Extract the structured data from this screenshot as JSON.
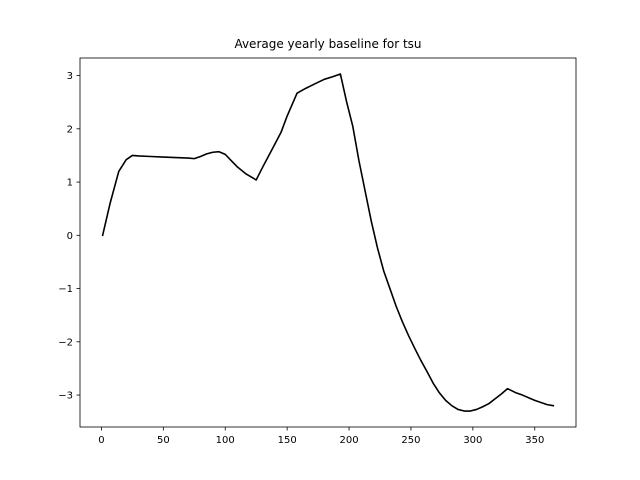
{
  "chart_data": {
    "type": "line",
    "title": "Average yearly baseline for tsu",
    "xlabel": "",
    "ylabel": "",
    "xlim": [
      -17.3,
      383.3
    ],
    "ylim": [
      -3.6,
      3.33
    ],
    "x_ticks": [
      0,
      50,
      100,
      150,
      200,
      250,
      300,
      350
    ],
    "x_tick_labels": [
      "0",
      "50",
      "100",
      "150",
      "200",
      "250",
      "300",
      "350"
    ],
    "y_ticks": [
      3,
      2,
      1,
      0,
      -1,
      -2,
      -3
    ],
    "y_tick_labels": [
      "3",
      "2",
      "1",
      "0",
      "−1",
      "−2",
      "−3"
    ],
    "grid": false,
    "line_color": "#000000",
    "series": [
      {
        "x": [
          1,
          7,
          14,
          20,
          25,
          30,
          40,
          50,
          60,
          70,
          75,
          80,
          85,
          90,
          95,
          100,
          105,
          110,
          117,
          125,
          130,
          138,
          145,
          150,
          158,
          165,
          172,
          180,
          187,
          193,
          198,
          203,
          208,
          213,
          218,
          223,
          228,
          233,
          238,
          243,
          248,
          253,
          258,
          263,
          268,
          273,
          278,
          283,
          288,
          293,
          298,
          303,
          308,
          313,
          318,
          323,
          328,
          335,
          340,
          345,
          350,
          355,
          360,
          365
        ],
        "y": [
          0.0,
          0.6,
          1.2,
          1.42,
          1.5,
          1.49,
          1.48,
          1.47,
          1.46,
          1.45,
          1.44,
          1.48,
          1.53,
          1.56,
          1.57,
          1.52,
          1.4,
          1.28,
          1.15,
          1.04,
          1.27,
          1.62,
          1.93,
          2.24,
          2.67,
          2.76,
          2.84,
          2.93,
          2.98,
          3.03,
          2.51,
          2.05,
          1.4,
          0.83,
          0.26,
          -0.24,
          -0.67,
          -1.0,
          -1.33,
          -1.62,
          -1.88,
          -2.12,
          -2.35,
          -2.56,
          -2.78,
          -2.96,
          -3.1,
          -3.2,
          -3.27,
          -3.3,
          -3.3,
          -3.27,
          -3.22,
          -3.16,
          -3.07,
          -2.98,
          -2.88,
          -2.96,
          -3.0,
          -3.05,
          -3.1,
          -3.14,
          -3.18,
          -3.2
        ]
      }
    ]
  }
}
